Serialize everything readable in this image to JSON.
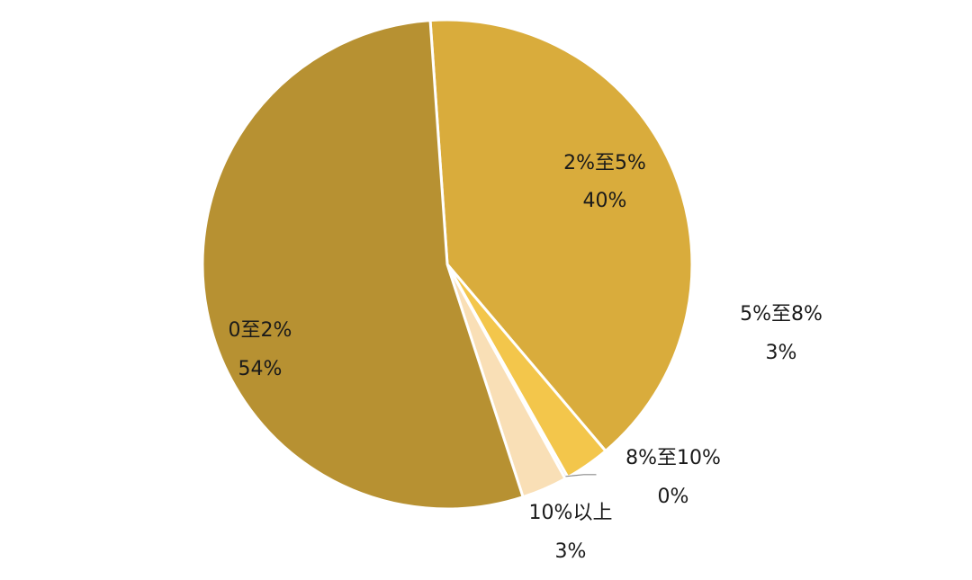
{
  "chart_data": {
    "type": "pie",
    "slices": [
      {
        "category": "0至2%",
        "value_label": "54%",
        "value": 54,
        "color": "#b79132"
      },
      {
        "category": "2%至5%",
        "value_label": "40%",
        "value": 40,
        "color": "#d9ac3c"
      },
      {
        "category": "5%至8%",
        "value_label": "3%",
        "value": 3,
        "color": "#f3c64b"
      },
      {
        "category": "8%至10%",
        "value_label": "0%",
        "value": 0.2,
        "color": "#c9c9c9"
      },
      {
        "category": "10%以上",
        "value_label": "3%",
        "value": 3,
        "color": "#f9dfb6"
      }
    ],
    "legend": "none",
    "separator_color": "#ffffff"
  }
}
